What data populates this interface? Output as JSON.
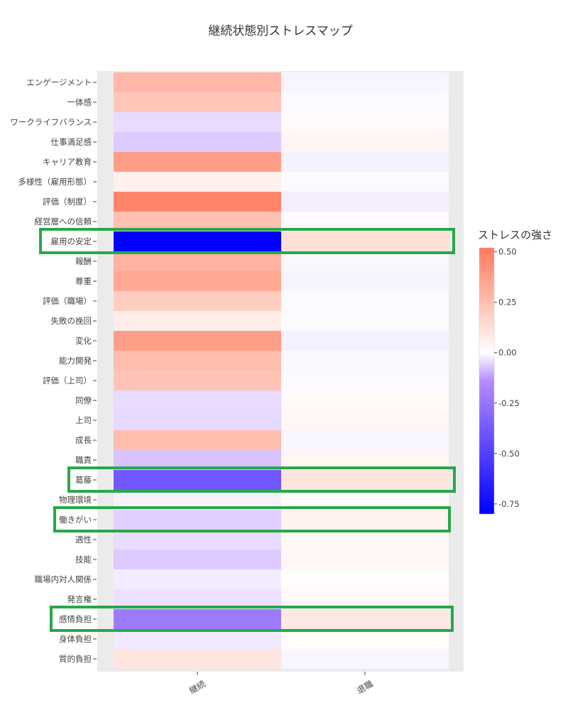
{
  "chart_data": {
    "type": "heatmap",
    "title": "継続状態別ストレスマップ",
    "xlabel": "",
    "ylabel": "",
    "categories_x": [
      "継続",
      "退職"
    ],
    "categories_y": [
      "エンゲージメント",
      "一体感",
      "ワークライフバランス",
      "仕事満足感",
      "キャリア教育",
      "多様性（雇用形態）",
      "評価（制度）",
      "経営層への信頼",
      "雇用の安定",
      "報酬",
      "尊重",
      "評価（職場）",
      "失敗の挽回",
      "変化",
      "能力開発",
      "評価（上司）",
      "同僚",
      "上司",
      "成長",
      "職責",
      "葛藤",
      "物理環境",
      "働きがい",
      "適性",
      "技能",
      "職場内対人関係",
      "発言権",
      "感情負担",
      "身体負担",
      "質的負担"
    ],
    "values": [
      [
        0.28,
        -0.04
      ],
      [
        0.22,
        -0.02
      ],
      [
        -0.15,
        0.02
      ],
      [
        -0.22,
        0.04
      ],
      [
        0.38,
        -0.06
      ],
      [
        0.06,
        -0.02
      ],
      [
        0.48,
        -0.07
      ],
      [
        0.25,
        -0.02
      ],
      [
        -0.85,
        0.12
      ],
      [
        0.3,
        -0.03
      ],
      [
        0.34,
        -0.05
      ],
      [
        0.2,
        -0.02
      ],
      [
        0.07,
        -0.02
      ],
      [
        0.38,
        -0.06
      ],
      [
        0.26,
        -0.03
      ],
      [
        0.23,
        -0.02
      ],
      [
        -0.15,
        0.02
      ],
      [
        -0.16,
        0.03
      ],
      [
        0.26,
        -0.04
      ],
      [
        -0.25,
        0.03
      ],
      [
        -0.6,
        0.11
      ],
      [
        -0.06,
        0.01
      ],
      [
        -0.2,
        0.05
      ],
      [
        -0.15,
        0.03
      ],
      [
        -0.22,
        0.03
      ],
      [
        -0.08,
        0.01
      ],
      [
        -0.13,
        0.02
      ],
      [
        -0.52,
        0.09
      ],
      [
        -0.09,
        0.01
      ],
      [
        0.1,
        -0.04
      ]
    ],
    "colorbar": {
      "title": "ストレスの強さ",
      "min": -0.8,
      "max": 0.52,
      "ticks": [
        0.5,
        0.25,
        0.0,
        -0.25,
        -0.5,
        -0.75
      ],
      "tick_labels": [
        "0.50",
        "0.25",
        "0.00",
        "-0.25",
        "-0.50",
        "-0.75"
      ]
    },
    "highlighted_rows": [
      "雇用の安定",
      "葛藤",
      "働きがい",
      "感情負担"
    ],
    "highlight_color": "#27a84a",
    "grid": true,
    "legend_placement": "right"
  }
}
